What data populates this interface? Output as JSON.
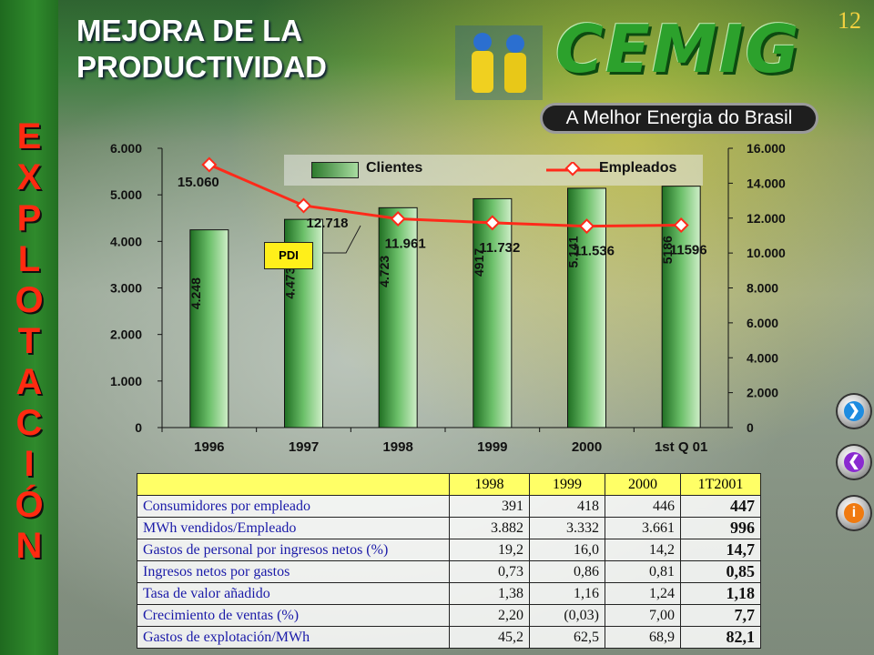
{
  "page": {
    "title_line1": "MEJORA DE LA",
    "title_line2": "PRODUCTIVIDAD",
    "page_number": "12",
    "section_word": [
      "E",
      "X",
      "P",
      "L",
      "O",
      "T",
      "A",
      "C",
      "I",
      "Ó",
      "N"
    ],
    "logo_text": "CEMIG",
    "tagline": "A Melhor Energia do Brasil",
    "pdi_label": "PDI"
  },
  "colors": {
    "bar": "#3f9a3f",
    "line": "#ff2a1a",
    "section_letters": "#ff2a10",
    "table_header": "#ffff66"
  },
  "icons": {
    "next": "arrow-right-icon",
    "back": "arrow-left-icon",
    "info": "info-icon"
  },
  "chart_data": {
    "type": "bar",
    "categories": [
      "1996",
      "1997",
      "1998",
      "1999",
      "2000",
      "1st Q 01"
    ],
    "series": [
      {
        "name": "Clientes",
        "type": "bar",
        "axis": "left",
        "values": [
          4248,
          4473,
          4723,
          4917,
          5141,
          5186
        ],
        "data_labels": [
          "4.248",
          "4.473",
          "4.723",
          "4917",
          "5.141",
          "5186"
        ]
      },
      {
        "name": "Empleados",
        "type": "line",
        "axis": "right",
        "values": [
          15060,
          12718,
          11961,
          11732,
          11536,
          11596
        ],
        "data_labels": [
          "15.060",
          "12.718",
          "11.961",
          "11.732",
          "11.536",
          "11596"
        ]
      }
    ],
    "left_axis": {
      "ylim": [
        0,
        6000
      ],
      "ticks": [
        "0",
        "1.000",
        "2.000",
        "3.000",
        "4.000",
        "5.000",
        "6.000"
      ]
    },
    "right_axis": {
      "ylim": [
        0,
        16000
      ],
      "ticks": [
        "0",
        "2.000",
        "4.000",
        "6.000",
        "8.000",
        "10.000",
        "12.000",
        "14.000",
        "16.000"
      ]
    },
    "legend": [
      "Clientes",
      "Empleados"
    ],
    "grid": false
  },
  "table": {
    "headers": [
      "",
      "1998",
      "1999",
      "2000",
      "1T2001"
    ],
    "rows": [
      {
        "label": "Consumidores por empleado",
        "values": [
          "391",
          "418",
          "446",
          "447"
        ]
      },
      {
        "label": "MWh vendidos/Empleado",
        "values": [
          "3.882",
          "3.332",
          "3.661",
          "996"
        ]
      },
      {
        "label": "Gastos de personal por ingresos netos (%)",
        "values": [
          "19,2",
          "16,0",
          "14,2",
          "14,7"
        ]
      },
      {
        "label": "Ingresos netos por gastos",
        "values": [
          "0,73",
          "0,86",
          "0,81",
          "0,85"
        ]
      },
      {
        "label": "Tasa de valor añadido",
        "values": [
          "1,38",
          "1,16",
          "1,24",
          "1,18"
        ]
      },
      {
        "label": "Crecimiento de ventas (%)",
        "values": [
          "2,20",
          "(0,03)",
          "7,00",
          "7,7"
        ]
      },
      {
        "label": "Gastos de explotación/MWh",
        "values": [
          "45,2",
          "62,5",
          "68,9",
          "82,1"
        ]
      }
    ]
  }
}
